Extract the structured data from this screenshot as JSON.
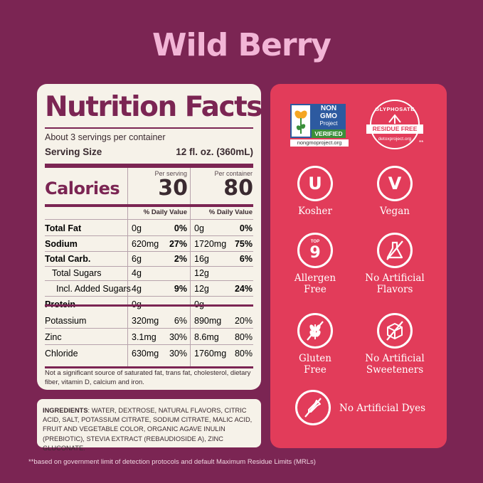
{
  "title": "Wild Berry",
  "nutrition": {
    "heading": "Nutrition Facts",
    "servings": "About 3 servings per container",
    "serving_size_label": "Serving Size",
    "serving_size_value": "12 fl. oz. (360mL)",
    "per_serving": "Per serving",
    "per_container": "Per container",
    "calories_label": "Calories",
    "calories_serving": "30",
    "calories_container": "80",
    "dv_header": "% Daily Value",
    "rows": [
      {
        "name": "Total Fat",
        "s": "0g",
        "sdv": "0%",
        "c": "0g",
        "cdv": "0%"
      },
      {
        "name": "Sodium",
        "s": "620mg",
        "sdv": "27%",
        "c": "1720mg",
        "cdv": "75%"
      },
      {
        "name": "Total Carb.",
        "s": "6g",
        "sdv": "2%",
        "c": "16g",
        "cdv": "6%"
      },
      {
        "name": "Total Sugars",
        "s": "4g",
        "sdv": "",
        "c": "12g",
        "cdv": ""
      },
      {
        "name": "Incl. Added Sugars",
        "s": "4g",
        "sdv": "9%",
        "c": "12g",
        "cdv": "24%"
      },
      {
        "name": "Protein",
        "s": "0g",
        "sdv": "",
        "c": "0g",
        "cdv": ""
      },
      {
        "name": "Potassium",
        "s": "320mg",
        "sdv": "6%",
        "c": "890mg",
        "cdv": "20%"
      },
      {
        "name": "Zinc",
        "s": "3.1mg",
        "sdv": "30%",
        "c": "8.6mg",
        "cdv": "80%"
      },
      {
        "name": "Chloride",
        "s": "630mg",
        "sdv": "30%",
        "c": "1760mg",
        "cdv": "80%"
      }
    ],
    "note": "Not a significant source of saturated fat, trans fat, cholesterol, dietary fiber, vitamin D, calcium and iron."
  },
  "ingredients": {
    "label": "INGREDIENTS",
    "text": ": WATER, DEXTROSE, NATURAL FLAVORS, CITRIC ACID, SALT, POTASSIUM CITRATE, SODIUM CITRATE, MALIC ACID, FRUIT AND VEGETABLE COLOR, ORGANIC AGAVE INULIN (PREBIOTIC), STEVIA EXTRACT (REBAUDIOSIDE A), ZINC GLUCONATE."
  },
  "footnote": "**based on government limit of detection protocols and default Maximum Residue Limits (MRLs)",
  "certs": {
    "nongmo_line1": "NON",
    "nongmo_line2": "GMO",
    "nongmo_line3": "Project",
    "nongmo_verified": "VERIFIED",
    "nongmo_url": "nongmoproject.org",
    "glyphosate_top": "GLYPHOSATE",
    "glyphosate_band": "RESIDUE FREE",
    "glyphosate_url": "detoxproject.org",
    "glyphosate_mark": "**"
  },
  "badges": {
    "kosher_symbol": "U",
    "kosher": "Kosher",
    "vegan_symbol": "V",
    "vegan": "Vegan",
    "allergen_top": "TOP",
    "allergen_num": "9",
    "allergen_1": "Allergen",
    "allergen_2": "Free",
    "flavors_1": "No Artificial",
    "flavors_2": "Flavors",
    "gluten_1": "Gluten",
    "gluten_2": "Free",
    "sweet_1": "No Artificial",
    "sweet_2": "Sweeteners",
    "dyes": "No Artificial Dyes"
  },
  "colors": {
    "background": "#7b2553",
    "accent": "#e23c5a",
    "panel": "#f6f2e9",
    "title": "#f2b5d6"
  }
}
